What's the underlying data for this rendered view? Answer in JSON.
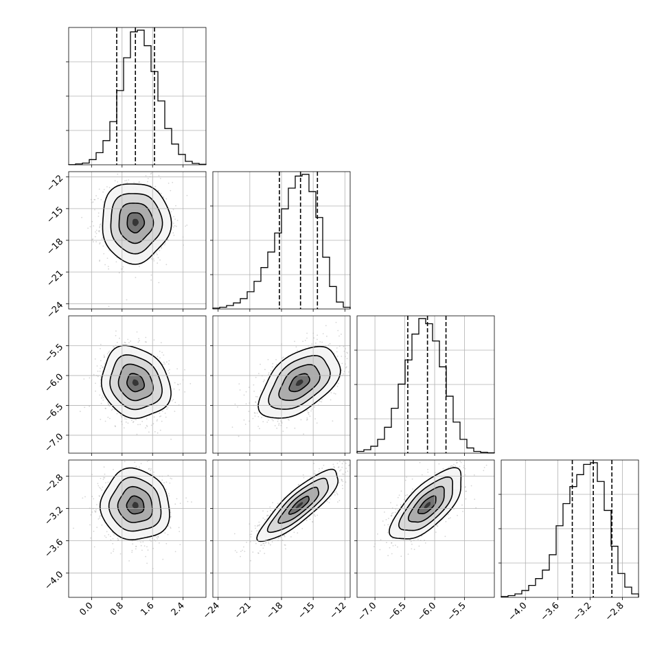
{
  "chart_data": {
    "type": "corner",
    "grid": true,
    "parameters": [
      {
        "range": [
          -0.6,
          3.0
        ],
        "ticks": [
          0.0,
          0.8,
          1.6,
          2.4
        ],
        "tick_labels": [
          "0.0",
          "0.8",
          "1.6",
          "2.4"
        ],
        "quantiles": [
          0.66,
          1.15,
          1.65
        ],
        "hist_bin_edges": [
          -0.6,
          -0.42,
          -0.24,
          -0.06,
          0.12,
          0.3,
          0.48,
          0.66,
          0.84,
          1.02,
          1.2,
          1.38,
          1.56,
          1.74,
          1.92,
          2.1,
          2.28,
          2.46,
          2.64,
          2.82,
          3.0
        ],
        "hist_counts": [
          1,
          5,
          10,
          30,
          70,
          140,
          250,
          430,
          620,
          770,
          780,
          690,
          540,
          370,
          210,
          120,
          60,
          20,
          8,
          3
        ]
      },
      {
        "range": [
          -24.5,
          -11.5
        ],
        "ticks": [
          -24,
          -21,
          -18,
          -15,
          -12
        ],
        "tick_labels": [
          "−24",
          "−21",
          "−18",
          "−15",
          "−12"
        ],
        "quantiles": [
          -18.2,
          -16.2,
          -14.6
        ],
        "hist_bin_edges": [
          -24.5,
          -23.85,
          -23.2,
          -22.55,
          -21.9,
          -21.25,
          -20.6,
          -19.95,
          -19.3,
          -18.65,
          -18.0,
          -17.35,
          -16.7,
          -16.05,
          -15.4,
          -14.75,
          -14.1,
          -13.45,
          -12.8,
          -12.15,
          -11.5
        ],
        "hist_counts": [
          5,
          10,
          20,
          35,
          60,
          100,
          160,
          240,
          330,
          440,
          580,
          700,
          770,
          780,
          680,
          530,
          300,
          130,
          40,
          10
        ]
      },
      {
        "range": [
          -7.3,
          -5.0
        ],
        "ticks": [
          -7.0,
          -6.5,
          -6.0,
          -5.5
        ],
        "tick_labels": [
          "−7.0",
          "−6.5",
          "−6.0",
          "−5.5"
        ],
        "quantiles": [
          -6.45,
          -6.12,
          -5.81
        ],
        "hist_bin_edges": [
          -7.3,
          -7.185,
          -7.07,
          -6.955,
          -6.84,
          -6.725,
          -6.61,
          -6.495,
          -6.38,
          -6.265,
          -6.15,
          -6.035,
          -5.92,
          -5.805,
          -5.69,
          -5.575,
          -5.46,
          -5.345,
          -5.23,
          -5.115,
          -5.0
        ],
        "hist_counts": [
          10,
          20,
          40,
          80,
          150,
          260,
          400,
          540,
          690,
          780,
          750,
          650,
          500,
          330,
          180,
          80,
          30,
          10,
          5,
          2
        ]
      },
      {
        "range": [
          -4.3,
          -2.6
        ],
        "ticks": [
          -4.0,
          -3.6,
          -3.2,
          -2.8
        ],
        "tick_labels": [
          "−4.0",
          "−3.6",
          "−3.2",
          "−2.8"
        ],
        "quantiles": [
          -3.42,
          -3.16,
          -2.93
        ],
        "hist_bin_edges": [
          -4.3,
          -4.215,
          -4.13,
          -4.045,
          -3.96,
          -3.875,
          -3.79,
          -3.705,
          -3.62,
          -3.535,
          -3.45,
          -3.365,
          -3.28,
          -3.195,
          -3.11,
          -3.025,
          -2.94,
          -2.855,
          -2.77,
          -2.685,
          -2.6
        ],
        "hist_counts": [
          5,
          10,
          20,
          40,
          70,
          110,
          160,
          250,
          420,
          550,
          650,
          720,
          780,
          790,
          680,
          510,
          300,
          140,
          60,
          20
        ]
      }
    ],
    "pairs": [
      {
        "x_param": 0,
        "y_param": 1,
        "mean": [
          1.15,
          -16.3
        ],
        "std": [
          0.45,
          1.9
        ],
        "corr": 0.0,
        "n_points": 1100
      },
      {
        "x_param": 0,
        "y_param": 2,
        "mean": [
          1.15,
          -6.12
        ],
        "std": [
          0.45,
          0.3
        ],
        "corr": -0.15,
        "n_points": 1100
      },
      {
        "x_param": 1,
        "y_param": 2,
        "mean": [
          -16.3,
          -6.12
        ],
        "std": [
          1.9,
          0.3
        ],
        "corr": 0.5,
        "n_points": 1100
      },
      {
        "x_param": 0,
        "y_param": 3,
        "mean": [
          1.15,
          -3.16
        ],
        "std": [
          0.45,
          0.22
        ],
        "corr": -0.05,
        "n_points": 1100
      },
      {
        "x_param": 1,
        "y_param": 3,
        "mean": [
          -16.3,
          -3.16
        ],
        "std": [
          1.9,
          0.22
        ],
        "corr": 0.85,
        "n_points": 1100
      },
      {
        "x_param": 2,
        "y_param": 3,
        "mean": [
          -6.12,
          -3.16
        ],
        "std": [
          0.3,
          0.22
        ],
        "corr": 0.7,
        "n_points": 1100
      }
    ],
    "contour_levels_sigma": [
      0.5,
      1.0,
      1.5,
      2.0
    ]
  }
}
